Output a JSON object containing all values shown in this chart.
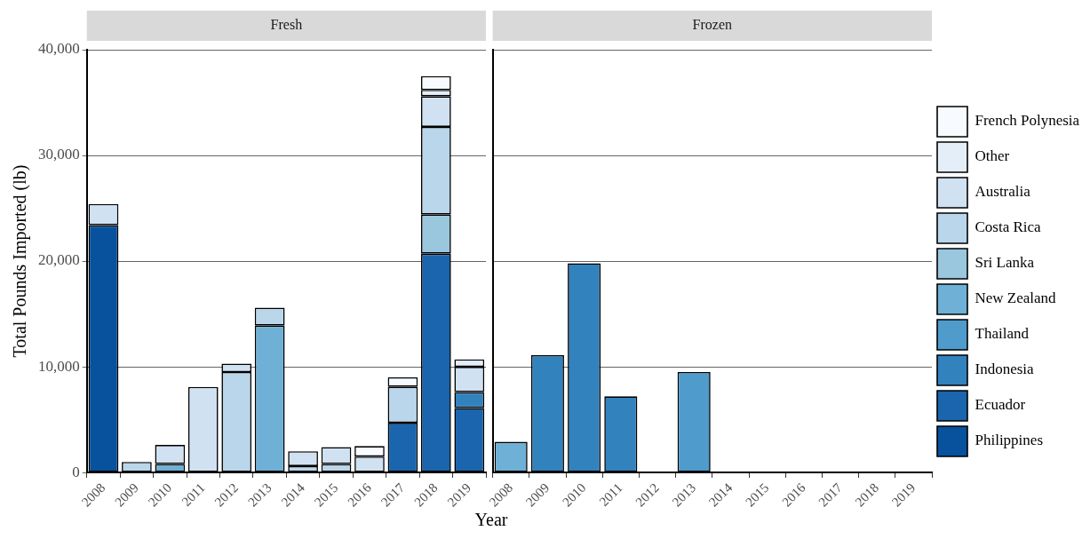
{
  "chart_data": [
    {
      "type": "bar",
      "title": "Fresh",
      "xlabel": "Year",
      "ylabel": "Total Pounds Imported (lb)",
      "stacked": true,
      "grid": "y",
      "legend": false,
      "categories": [
        "2008",
        "2009",
        "2010",
        "2011",
        "2012",
        "2013",
        "2014",
        "2015",
        "2016",
        "2017",
        "2018",
        "2019"
      ],
      "ylim": [
        0,
        40000
      ],
      "yticks": [
        {
          "value": 0,
          "label": "0"
        },
        {
          "value": 10000,
          "label": "10,000"
        },
        {
          "value": 20000,
          "label": "20,000"
        },
        {
          "value": 30000,
          "label": "30,000"
        },
        {
          "value": 40000,
          "label": "40,000"
        }
      ],
      "series": [
        {
          "color": "#08519c",
          "values": [
            23400,
            null,
            null,
            null,
            null,
            null,
            null,
            null,
            null,
            null,
            null,
            null
          ]
        },
        {
          "color": "#1a65ad",
          "values": [
            null,
            null,
            null,
            null,
            null,
            null,
            null,
            null,
            null,
            4700,
            20700,
            6100
          ]
        },
        {
          "color": "#3282bd",
          "values": [
            null,
            null,
            null,
            null,
            null,
            null,
            null,
            null,
            null,
            null,
            null,
            1500
          ]
        },
        {
          "color": "#4f9bcc",
          "values": [
            null,
            null,
            null,
            null,
            null,
            null,
            null,
            null,
            null,
            null,
            null,
            null
          ]
        },
        {
          "color": "#6eb0d6",
          "values": [
            null,
            null,
            800,
            null,
            null,
            13900,
            null,
            null,
            null,
            null,
            null,
            null
          ]
        },
        {
          "color": "#9ac6de",
          "values": [
            null,
            null,
            null,
            null,
            null,
            null,
            null,
            null,
            null,
            null,
            3700,
            null
          ]
        },
        {
          "color": "#bad6ea",
          "values": [
            null,
            1000,
            null,
            null,
            9500,
            1700,
            600,
            800,
            null,
            3400,
            8300,
            null
          ]
        },
        {
          "color": "#d0e1f2",
          "values": [
            2000,
            null,
            1800,
            8100,
            800,
            null,
            1400,
            1600,
            1500,
            null,
            2900,
            2400
          ]
        },
        {
          "color": "#e4eef9",
          "values": [
            null,
            null,
            null,
            null,
            null,
            null,
            null,
            null,
            null,
            null,
            600,
            700
          ]
        },
        {
          "color": "#f7fbff",
          "values": [
            null,
            null,
            null,
            null,
            null,
            null,
            null,
            null,
            1000,
            900,
            1300,
            null
          ]
        }
      ]
    },
    {
      "type": "bar",
      "title": "Frozen",
      "stacked": true,
      "grid": "y",
      "legend": "right",
      "tick_labels": "x",
      "categories": [
        "2008",
        "2009",
        "2010",
        "2011",
        "2012",
        "2013",
        "2014",
        "2015",
        "2016",
        "2017",
        "2018",
        "2019"
      ],
      "ylim": [
        0,
        40000
      ],
      "yticks": [
        0,
        10000,
        20000,
        30000,
        40000
      ],
      "series": [
        {
          "name": "Philippines",
          "color": "#08519c",
          "values": [
            null,
            null,
            null,
            null,
            null,
            null,
            null,
            null,
            null,
            null,
            null,
            null
          ]
        },
        {
          "name": "Ecuador",
          "color": "#1a65ad",
          "values": [
            null,
            null,
            null,
            null,
            null,
            null,
            null,
            null,
            null,
            null,
            null,
            null
          ]
        },
        {
          "name": "Indonesia",
          "color": "#3282bd",
          "values": [
            null,
            11100,
            19800,
            7200,
            null,
            null,
            null,
            null,
            null,
            null,
            null,
            null
          ]
        },
        {
          "name": "Thailand",
          "color": "#4f9bcc",
          "values": [
            null,
            null,
            null,
            null,
            null,
            9500,
            null,
            null,
            null,
            null,
            null,
            null
          ]
        },
        {
          "name": "New Zealand",
          "color": "#6eb0d6",
          "values": [
            2900,
            null,
            null,
            null,
            null,
            null,
            null,
            null,
            null,
            null,
            null,
            null
          ]
        },
        {
          "name": "Sri Lanka",
          "color": "#9ac6de",
          "values": [
            null,
            null,
            null,
            null,
            null,
            null,
            null,
            null,
            null,
            null,
            null,
            null
          ]
        },
        {
          "name": "Costa Rica",
          "color": "#bad6ea",
          "values": [
            null,
            null,
            null,
            null,
            null,
            null,
            null,
            null,
            null,
            null,
            null,
            null
          ]
        },
        {
          "name": "Australia",
          "color": "#d0e1f2",
          "values": [
            null,
            null,
            null,
            null,
            null,
            null,
            null,
            null,
            null,
            null,
            null,
            null
          ]
        },
        {
          "name": "Other",
          "color": "#e4eef9",
          "values": [
            null,
            null,
            null,
            null,
            null,
            null,
            null,
            null,
            null,
            null,
            null,
            null
          ]
        },
        {
          "name": "French Polynesia",
          "color": "#f7fbff",
          "values": [
            null,
            null,
            null,
            null,
            null,
            null,
            null,
            null,
            null,
            null,
            null,
            null
          ]
        }
      ]
    }
  ]
}
